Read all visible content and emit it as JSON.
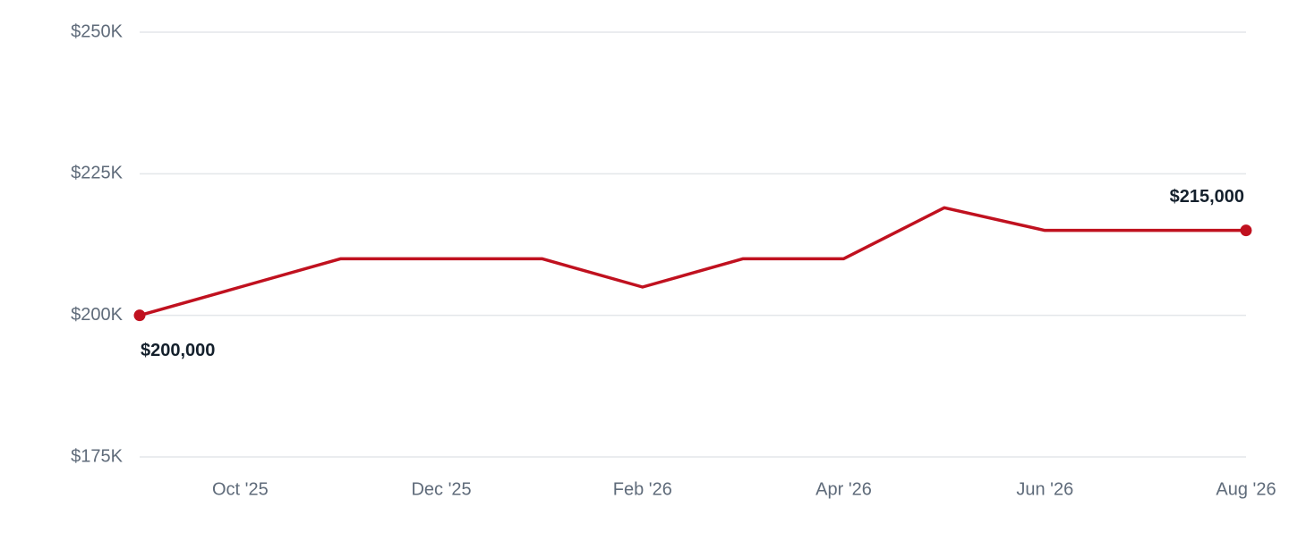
{
  "chart_data": {
    "type": "line",
    "categories": [
      null,
      "Oct '25",
      null,
      "Dec '25",
      null,
      "Feb '26",
      null,
      "Apr '26",
      null,
      "Jun '26",
      null,
      "Aug '26"
    ],
    "series": [
      {
        "color": "#c0111f",
        "values": [
          200000,
          205000,
          210000,
          210000,
          210000,
          205000,
          210000,
          210000,
          219000,
          215000,
          215000,
          215000
        ],
        "value_labels": [
          "$200,000",
          null,
          null,
          null,
          null,
          null,
          null,
          null,
          null,
          null,
          null,
          "$215,000"
        ]
      }
    ],
    "ylim": [
      175000,
      250000
    ],
    "yticks": [
      {
        "value": 175000,
        "label": "$175K"
      },
      {
        "value": 200000,
        "label": "$200K"
      },
      {
        "value": 225000,
        "label": "$225K"
      },
      {
        "value": 250000,
        "label": "$250K"
      }
    ],
    "grid": true
  }
}
